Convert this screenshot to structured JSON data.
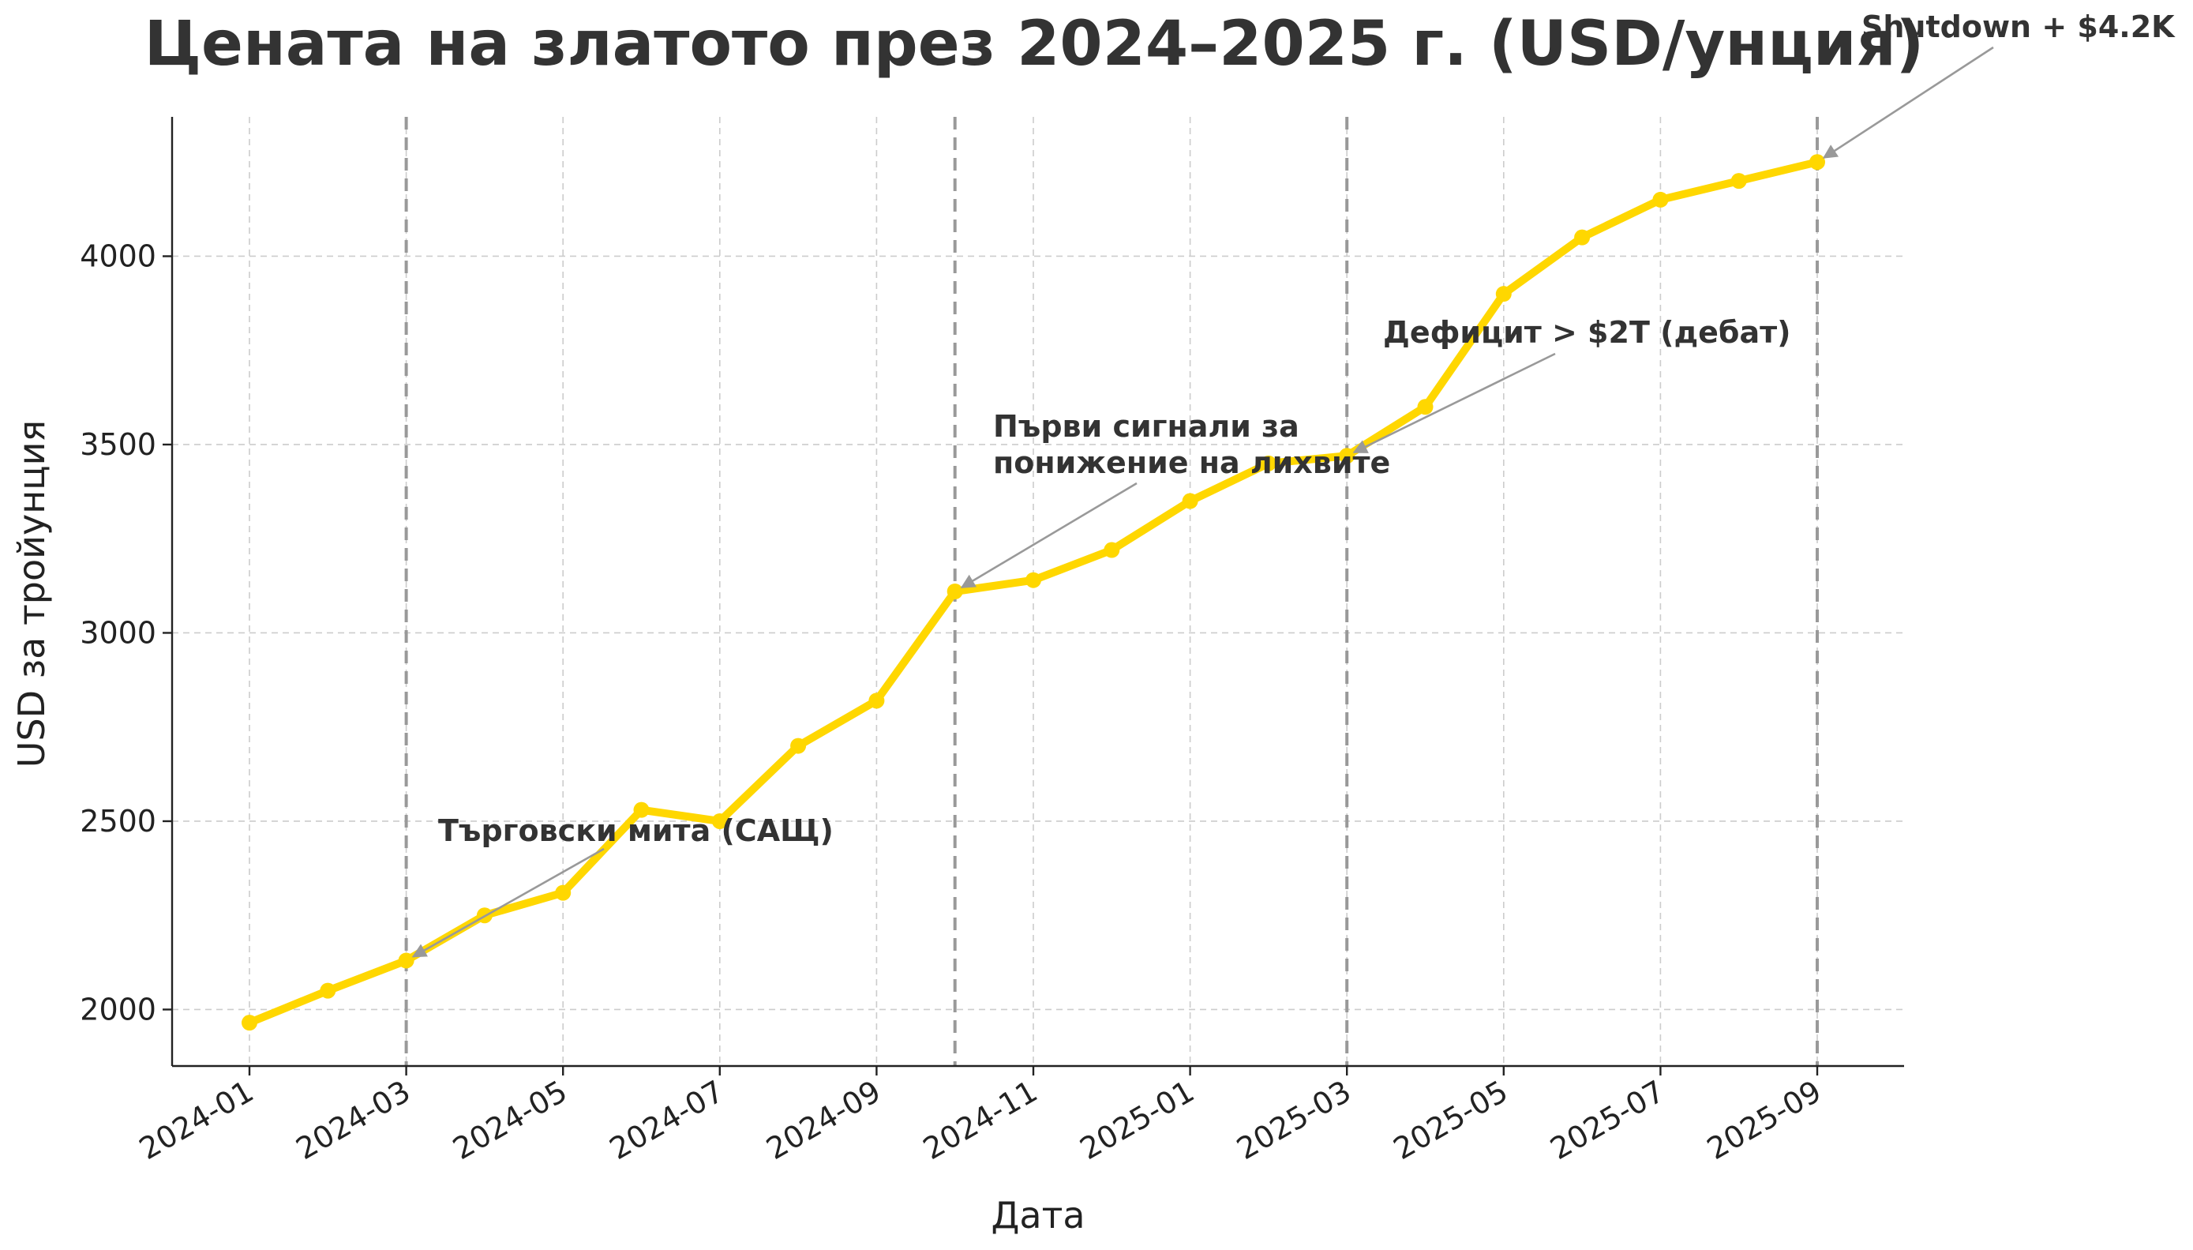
{
  "chart_data": {
    "type": "line",
    "title": "Цената на златото през 2024–2025 г. (USD/унция)",
    "xlabel": "Дата",
    "ylabel": "USD за тройунция",
    "x": [
      "2024-01",
      "2024-02",
      "2024-03",
      "2024-04",
      "2024-05",
      "2024-06",
      "2024-07",
      "2024-08",
      "2024-09",
      "2024-10",
      "2024-11",
      "2024-12",
      "2025-01",
      "2025-02",
      "2025-03",
      "2025-04",
      "2025-05",
      "2025-06",
      "2025-07",
      "2025-08",
      "2025-09"
    ],
    "values": [
      1965,
      2050,
      2130,
      2250,
      2310,
      2530,
      2500,
      2700,
      2820,
      3110,
      3140,
      3220,
      3350,
      3450,
      3470,
      3600,
      3900,
      4050,
      4150,
      4200,
      4250
    ],
    "xtick_labels": [
      "2024-01",
      "2024-03",
      "2024-05",
      "2024-07",
      "2024-09",
      "2024-11",
      "2025-01",
      "2025-03",
      "2025-05",
      "2025-07",
      "2025-09"
    ],
    "ytick_labels": [
      "2000",
      "2500",
      "3000",
      "3500",
      "4000"
    ],
    "ylim": [
      1850,
      4370
    ],
    "grid": true,
    "line_color": "#FFD700",
    "event_lines": [
      "2024-03",
      "2024-10",
      "2025-03",
      "2025-09"
    ],
    "annotations": [
      {
        "lines": [
          "Търговски мита (САЩ)"
        ],
        "target": "2024-03"
      },
      {
        "lines": [
          "Първи сигнали за",
          "понижение на лихвите"
        ],
        "target": "2024-10"
      },
      {
        "lines": [
          "Дефицит > $2T (дебат)"
        ],
        "target": "2025-03"
      },
      {
        "lines": [
          "Shutdown + $4.2K"
        ],
        "target": "2025-09"
      }
    ]
  }
}
